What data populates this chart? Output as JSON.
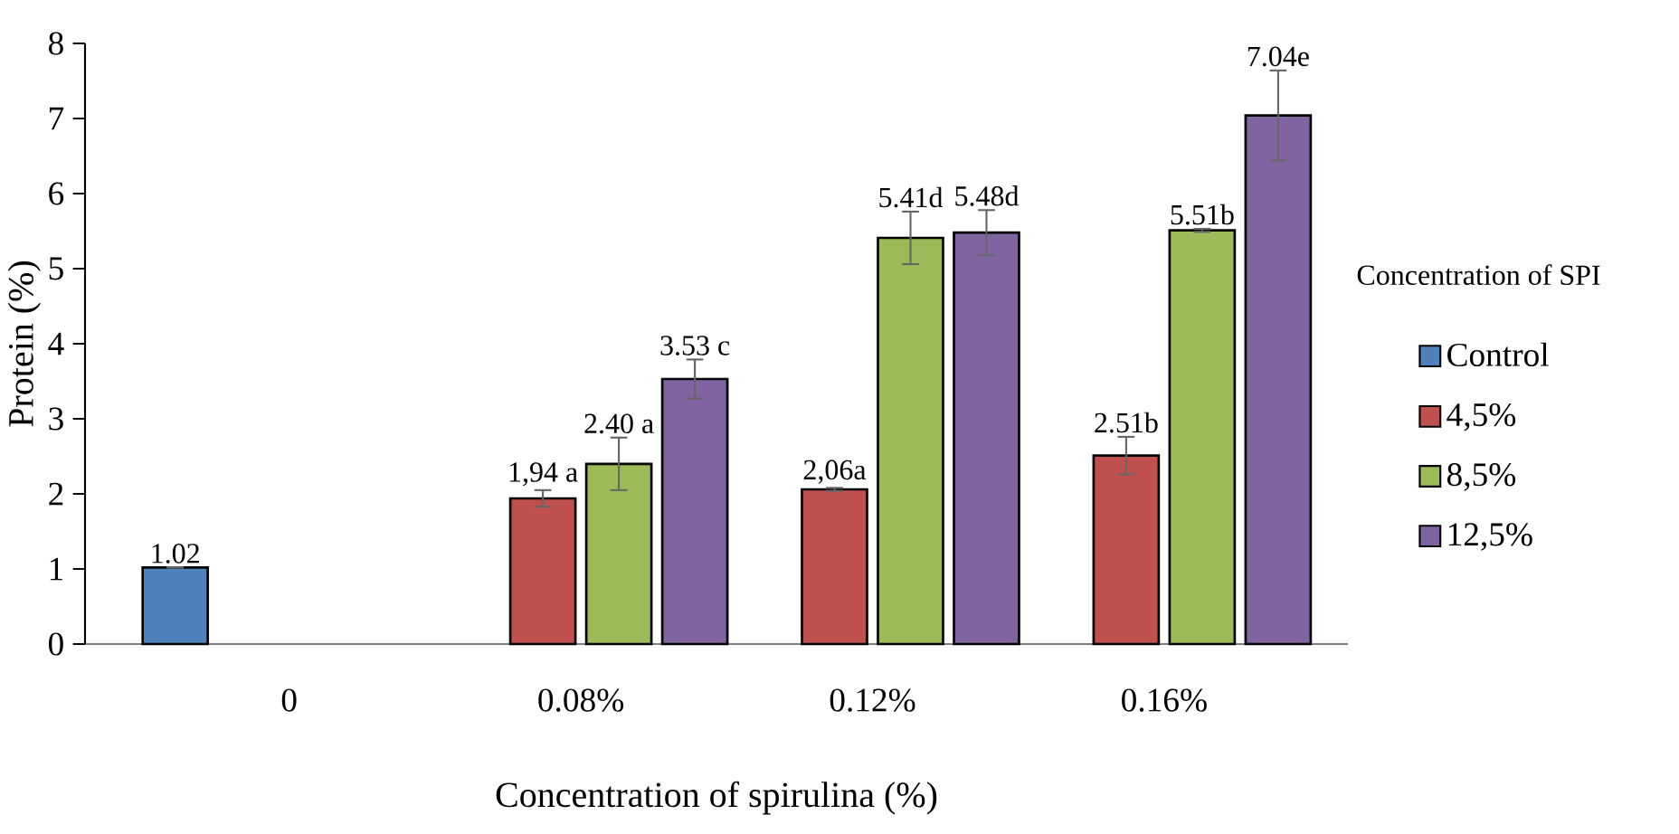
{
  "chart_data": {
    "type": "bar",
    "xlabel": "Concentration of spirulina (%)",
    "ylabel": "Protein (%)",
    "legend_title": "Concentration of SPI",
    "legend": "right",
    "categories": [
      "0",
      "0.08%",
      "0.12%",
      "0.16%"
    ],
    "ylim": [
      0,
      8
    ],
    "yticks": [
      0,
      1,
      2,
      3,
      4,
      5,
      6,
      7,
      8
    ],
    "series": [
      {
        "name": "Control",
        "color": "#4f81bd",
        "values": [
          1.02,
          null,
          null,
          null
        ],
        "errors": [
          null,
          null,
          null,
          null
        ],
        "value_labels": [
          "1.02",
          null,
          null,
          null
        ]
      },
      {
        "name": "4,5%",
        "color": "#c0504d",
        "values": [
          null,
          1.94,
          2.06,
          2.51
        ],
        "errors": [
          null,
          0.11,
          0.02,
          0.25
        ],
        "value_labels": [
          null,
          "1,94 a",
          "2,06a",
          "2.51b"
        ]
      },
      {
        "name": "8,5%",
        "color": "#9bbb59",
        "values": [
          null,
          2.4,
          5.41,
          5.51
        ],
        "errors": [
          null,
          0.35,
          0.35,
          0.02
        ],
        "value_labels": [
          null,
          "2.40 a",
          "5.41d",
          "5.51b"
        ]
      },
      {
        "name": "12,5%",
        "color": "#8064a2",
        "values": [
          null,
          3.53,
          5.48,
          7.04
        ],
        "errors": [
          null,
          0.26,
          0.3,
          0.6
        ],
        "value_labels": [
          null,
          "3.53 c",
          "5.48d",
          "7.04e"
        ]
      }
    ]
  }
}
